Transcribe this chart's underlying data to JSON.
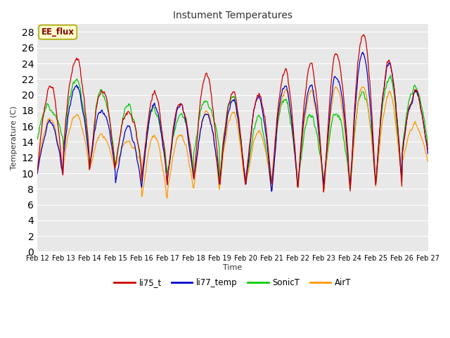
{
  "title": "Instument Temperatures",
  "ylabel": "Temperature (C)",
  "xlabel": "Time",
  "annotation": "EE_flux",
  "ylim": [
    0,
    29
  ],
  "yticks": [
    0,
    2,
    4,
    6,
    8,
    10,
    12,
    14,
    16,
    18,
    20,
    22,
    24,
    26,
    28
  ],
  "x_labels": [
    "Feb 12",
    "Feb 13",
    "Feb 14",
    "Feb 15",
    "Feb 16",
    "Feb 17",
    "Feb 18",
    "Feb 19",
    "Feb 20",
    "Feb 21",
    "Feb 22",
    "Feb 23",
    "Feb 24",
    "Feb 25",
    "Feb 26",
    "Feb 27"
  ],
  "colors": {
    "li75_t": "#cc0000",
    "li77_temp": "#0000cc",
    "SonicT": "#00cc00",
    "AirT": "#ff9900"
  },
  "bg_color": "#ffffff",
  "plot_bg": "#e8e8e8",
  "grid_color": "#ffffff",
  "annotation_bg": "#ffffcc",
  "annotation_text_color": "#880000",
  "annotation_edge_color": "#aaaa00",
  "n_points": 720
}
